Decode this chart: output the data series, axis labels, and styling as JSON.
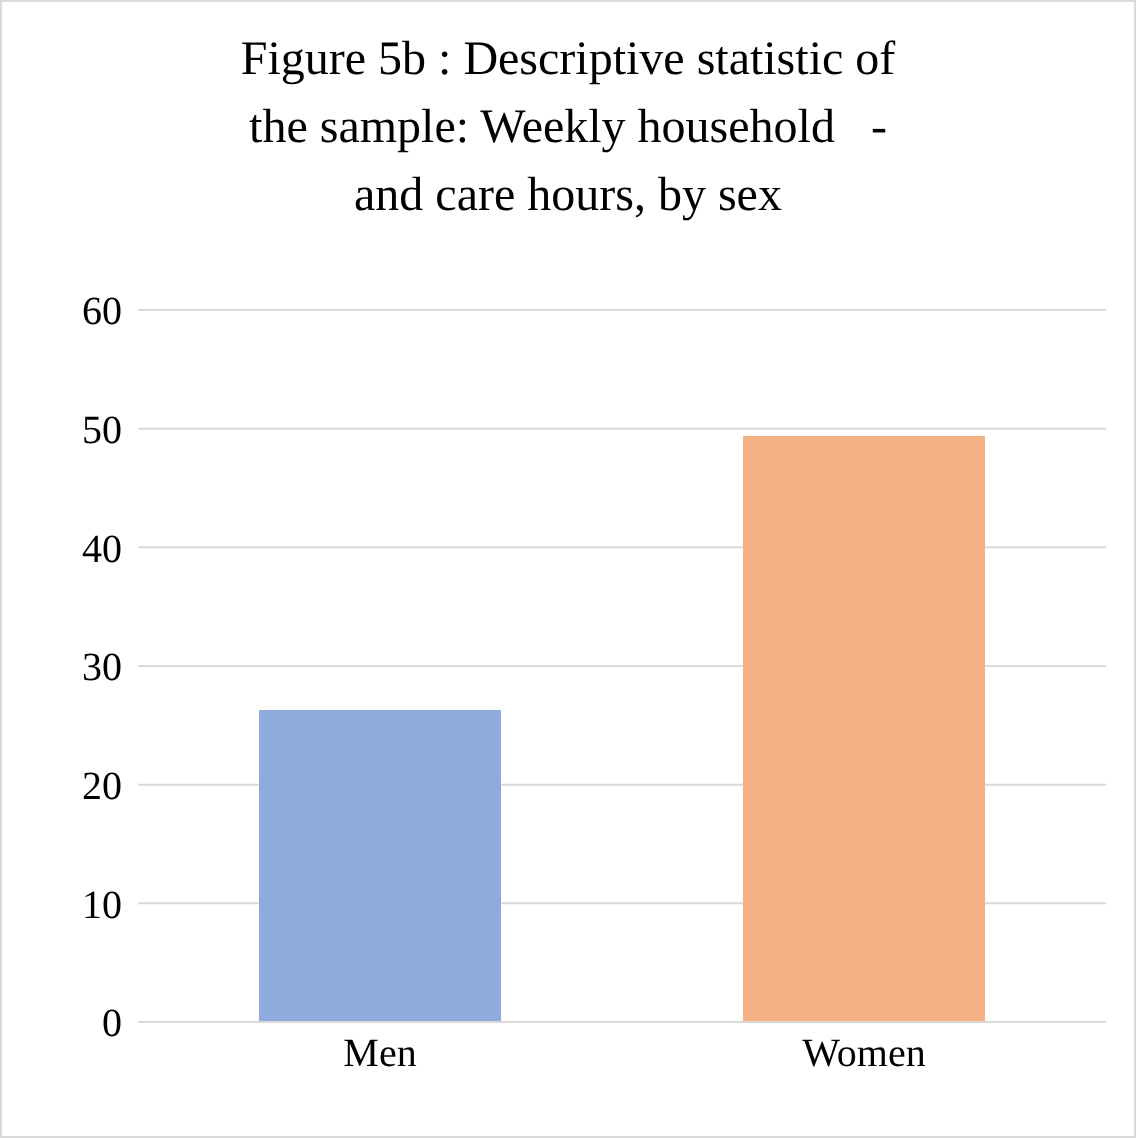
{
  "chart_data": {
    "type": "bar",
    "title": "Figure 5b : Descriptive statistic of the sample: Weekly household   - and care hours, by sex",
    "categories": [
      "Men",
      "Women"
    ],
    "values": [
      26.2,
      49.3
    ],
    "colors": [
      "#8faadc",
      "#f4b183"
    ],
    "ylim": [
      0,
      60
    ],
    "yticks": [
      0,
      10,
      20,
      30,
      40,
      50,
      60
    ],
    "grid": "y",
    "legend": false
  }
}
